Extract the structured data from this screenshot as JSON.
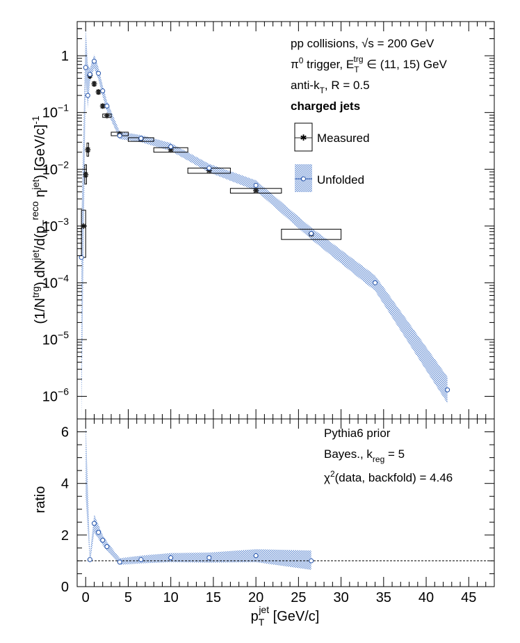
{
  "chart_data": [
    {
      "type": "scatter",
      "panel": "top",
      "ylabel_parts": {
        "a": "(1/N",
        "b": "trg",
        "c": ") dN",
        "d": "jet",
        "e": "/d(p",
        "f": "T",
        "g": "reco",
        "h": " η",
        "i": "jet",
        "j": ") [GeV/c]",
        "k": "-1"
      },
      "log_y": true,
      "xlim": [
        -1,
        48
      ],
      "ylim": [
        4e-07,
        4
      ],
      "y_ticks": [
        {
          "value": 1,
          "label": "1"
        },
        {
          "value": 0.1,
          "base": "10",
          "exp": "−1"
        },
        {
          "value": 0.01,
          "base": "10",
          "exp": "−2"
        },
        {
          "value": 0.001,
          "base": "10",
          "exp": "−3"
        },
        {
          "value": 0.0001,
          "base": "10",
          "exp": "−4"
        },
        {
          "value": 1e-05,
          "base": "10",
          "exp": "−5"
        },
        {
          "value": 1e-06,
          "base": "10",
          "exp": "−6"
        }
      ],
      "annotations": {
        "line1_a": "pp collisions, ",
        "line1_sqrt": "√s",
        "line1_b": " = 200 GeV",
        "line2_a": "π",
        "line2_sup0": "0",
        "line2_b": " trigger, E",
        "line2_sub": "T",
        "line2_sup": "trg",
        "line2_c": " ∈ (11, 15) GeV",
        "line3_a": "anti-k",
        "line3_sub": "T",
        "line3_b": ", R = 0.5",
        "line4": "charged jets"
      },
      "legend": {
        "measured": "Measured",
        "unfolded": "Unfolded"
      },
      "series": [
        {
          "name": "Measured",
          "color": "#222222",
          "points": [
            {
              "x": -0.25,
              "y": 0.001,
              "xlo": -0.5,
              "xhi": 0.0,
              "ylo": 0.00028,
              "yhi": 0.0019
            },
            {
              "x": 0.0,
              "y": 0.008,
              "xlo": -0.1,
              "xhi": 0.1,
              "ylo": 0.0055,
              "yhi": 0.012
            },
            {
              "x": 0.25,
              "y": 0.022,
              "xlo": 0.15,
              "xhi": 0.35,
              "ylo": 0.017,
              "yhi": 0.029
            },
            {
              "x": 0.5,
              "y": 0.45,
              "xlo": 0.4,
              "xhi": 0.6,
              "ylo": 0.4,
              "yhi": 0.5
            },
            {
              "x": 1.0,
              "y": 0.32,
              "xlo": 0.9,
              "xhi": 1.1,
              "ylo": 0.29,
              "yhi": 0.35
            },
            {
              "x": 1.5,
              "y": 0.23,
              "xlo": 1.4,
              "xhi": 1.6,
              "ylo": 0.21,
              "yhi": 0.25
            },
            {
              "x": 2.0,
              "y": 0.13,
              "xlo": 1.9,
              "xhi": 2.1,
              "ylo": 0.12,
              "yhi": 0.14
            },
            {
              "x": 2.5,
              "y": 0.088,
              "xlo": 2.0,
              "xhi": 3.0,
              "ylo": 0.082,
              "yhi": 0.094
            },
            {
              "x": 4.0,
              "y": 0.042,
              "xlo": 3.0,
              "xhi": 5.0,
              "ylo": 0.039,
              "yhi": 0.045
            },
            {
              "x": 6.5,
              "y": 0.034,
              "xlo": 5.0,
              "xhi": 8.0,
              "ylo": 0.031,
              "yhi": 0.036
            },
            {
              "x": 10.0,
              "y": 0.022,
              "xlo": 8.0,
              "xhi": 12.0,
              "ylo": 0.02,
              "yhi": 0.024
            },
            {
              "x": 14.5,
              "y": 0.0095,
              "xlo": 12.0,
              "xhi": 17.0,
              "ylo": 0.0085,
              "yhi": 0.0105
            },
            {
              "x": 20.0,
              "y": 0.0042,
              "xlo": 17.0,
              "xhi": 23.0,
              "ylo": 0.0038,
              "yhi": 0.0046
            },
            {
              "x": 26.5,
              "y": 0.00072,
              "xlo": 23.0,
              "xhi": 30.0,
              "ylo": 0.00058,
              "yhi": 0.00088
            }
          ]
        },
        {
          "name": "Unfolded",
          "color": "#1f4fa8",
          "band_color": "#6f95d6",
          "points": [
            {
              "x": -0.5,
              "y": 0.00028,
              "lo": 4e-07,
              "hi": 0.0012
            },
            {
              "x": 0.0,
              "y": 0.62,
              "lo": 0.35,
              "hi": 3.2
            },
            {
              "x": 0.25,
              "y": 0.2,
              "lo": 0.12,
              "hi": 0.7
            },
            {
              "x": 0.5,
              "y": 0.47,
              "lo": 0.35,
              "hi": 0.6
            },
            {
              "x": 1.0,
              "y": 0.8,
              "lo": 0.6,
              "hi": 1.05
            },
            {
              "x": 1.5,
              "y": 0.49,
              "lo": 0.38,
              "hi": 0.62
            },
            {
              "x": 2.0,
              "y": 0.24,
              "lo": 0.19,
              "hi": 0.3
            },
            {
              "x": 2.5,
              "y": 0.13,
              "lo": 0.105,
              "hi": 0.16
            },
            {
              "x": 4.0,
              "y": 0.039,
              "lo": 0.034,
              "hi": 0.046
            },
            {
              "x": 6.5,
              "y": 0.035,
              "lo": 0.03,
              "hi": 0.04
            },
            {
              "x": 10.0,
              "y": 0.025,
              "lo": 0.021,
              "hi": 0.029
            },
            {
              "x": 14.5,
              "y": 0.0105,
              "lo": 0.0088,
              "hi": 0.0125
            },
            {
              "x": 20.0,
              "y": 0.0052,
              "lo": 0.0042,
              "hi": 0.0064
            },
            {
              "x": 26.5,
              "y": 0.00074,
              "lo": 0.00058,
              "hi": 0.00094
            },
            {
              "x": 34.0,
              "y": 0.0001,
              "lo": 7.2e-05,
              "hi": 0.000135
            },
            {
              "x": 42.5,
              "y": 1.3e-06,
              "lo": 7.5e-07,
              "hi": 2.2e-06
            }
          ]
        }
      ]
    },
    {
      "type": "scatter",
      "panel": "bottom",
      "ylabel": "ratio",
      "xlabel_parts": {
        "a": "p",
        "sub": "T",
        "sup": "jet",
        "b": " [GeV/c]"
      },
      "xlim": [
        -1,
        48
      ],
      "ylim": [
        0,
        6.5
      ],
      "x_ticks": [
        0,
        5,
        10,
        15,
        20,
        25,
        30,
        35,
        40,
        45
      ],
      "y_ticks": [
        0,
        2,
        4,
        6
      ],
      "reference_line": 1,
      "annotations": {
        "line1": "Pythia6 prior",
        "line2_a": "Bayes., k",
        "line2_sub": "reg",
        "line2_b": " = 5",
        "line3_a": "χ",
        "line3_sup": "2",
        "line3_b": "(data, backfold) = 4.46"
      },
      "series": [
        {
          "name": "Unfolded",
          "points": [
            {
              "x": 0.0,
              "y": 6.5,
              "lo": 3.5,
              "hi": 6.5
            },
            {
              "x": 0.5,
              "y": 1.05,
              "lo": 0.9,
              "hi": 1.25
            },
            {
              "x": 1.0,
              "y": 2.45,
              "lo": 2.1,
              "hi": 2.8
            },
            {
              "x": 1.5,
              "y": 2.1,
              "lo": 1.85,
              "hi": 2.4
            },
            {
              "x": 2.0,
              "y": 1.8,
              "lo": 1.6,
              "hi": 2.0
            },
            {
              "x": 2.5,
              "y": 1.55,
              "lo": 1.4,
              "hi": 1.75
            },
            {
              "x": 4.0,
              "y": 0.95,
              "lo": 0.85,
              "hi": 1.1
            },
            {
              "x": 6.5,
              "y": 1.05,
              "lo": 0.9,
              "hi": 1.2
            },
            {
              "x": 10.0,
              "y": 1.12,
              "lo": 0.95,
              "hi": 1.3
            },
            {
              "x": 14.5,
              "y": 1.12,
              "lo": 0.93,
              "hi": 1.32
            },
            {
              "x": 20.0,
              "y": 1.2,
              "lo": 0.95,
              "hi": 1.45
            },
            {
              "x": 26.5,
              "y": 1.0,
              "lo": 0.65,
              "hi": 1.4
            }
          ]
        }
      ]
    }
  ]
}
